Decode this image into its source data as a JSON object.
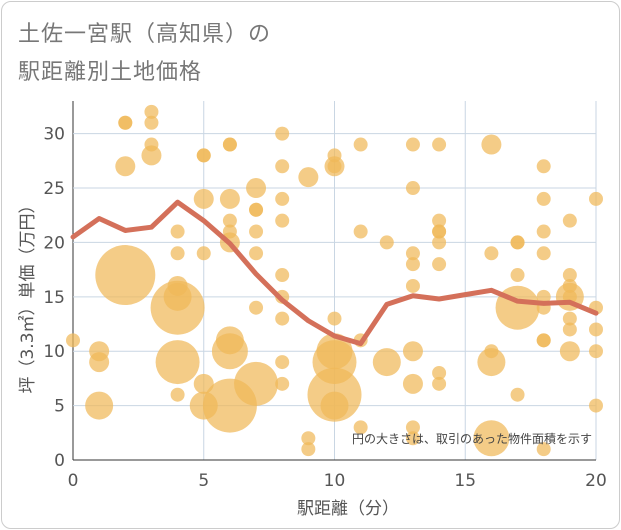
{
  "title_line1": "土佐一宮駅（高知県）の",
  "title_line2": "駅距離別土地価格",
  "chart_data": {
    "type": "scatter",
    "xlabel": "駅距離（分）",
    "ylabel": "坪（3.3㎡）単価（万円）",
    "xlim": [
      0,
      20
    ],
    "ylim": [
      0,
      33
    ],
    "xticks": [
      0,
      5,
      10,
      15,
      20
    ],
    "yticks": [
      0,
      5,
      10,
      15,
      20,
      25,
      30
    ],
    "grid": true,
    "note": "円の大きさは、取引のあった物件面積を示す",
    "colors": {
      "bubble": "#f0b859",
      "line": "#d4705a"
    },
    "bubbles": [
      {
        "x": 0,
        "y": 11,
        "s": 1
      },
      {
        "x": 1,
        "y": 10,
        "s": 2
      },
      {
        "x": 1,
        "y": 9,
        "s": 2
      },
      {
        "x": 1,
        "y": 5,
        "s": 3
      },
      {
        "x": 2,
        "y": 31,
        "s": 1
      },
      {
        "x": 2,
        "y": 31,
        "s": 1
      },
      {
        "x": 2,
        "y": 27,
        "s": 2
      },
      {
        "x": 2,
        "y": 17,
        "s": 7
      },
      {
        "x": 3,
        "y": 32,
        "s": 1
      },
      {
        "x": 3,
        "y": 31,
        "s": 1
      },
      {
        "x": 3,
        "y": 29,
        "s": 1
      },
      {
        "x": 3,
        "y": 28,
        "s": 2
      },
      {
        "x": 4,
        "y": 21,
        "s": 1
      },
      {
        "x": 4,
        "y": 19,
        "s": 1
      },
      {
        "x": 4,
        "y": 16,
        "s": 2
      },
      {
        "x": 4,
        "y": 15,
        "s": 3
      },
      {
        "x": 4,
        "y": 14,
        "s": 6
      },
      {
        "x": 4,
        "y": 9,
        "s": 5
      },
      {
        "x": 4,
        "y": 6,
        "s": 1
      },
      {
        "x": 5,
        "y": 28,
        "s": 1
      },
      {
        "x": 5,
        "y": 28,
        "s": 1
      },
      {
        "x": 5,
        "y": 24,
        "s": 2
      },
      {
        "x": 5,
        "y": 19,
        "s": 1
      },
      {
        "x": 5,
        "y": 7,
        "s": 2
      },
      {
        "x": 5,
        "y": 5,
        "s": 3
      },
      {
        "x": 6,
        "y": 29,
        "s": 1
      },
      {
        "x": 6,
        "y": 29,
        "s": 1
      },
      {
        "x": 6,
        "y": 24,
        "s": 2
      },
      {
        "x": 6,
        "y": 22,
        "s": 1
      },
      {
        "x": 6,
        "y": 21,
        "s": 1
      },
      {
        "x": 6,
        "y": 20,
        "s": 2
      },
      {
        "x": 6,
        "y": 11,
        "s": 3
      },
      {
        "x": 6,
        "y": 10,
        "s": 4
      },
      {
        "x": 6,
        "y": 5,
        "s": 6
      },
      {
        "x": 7,
        "y": 25,
        "s": 2
      },
      {
        "x": 7,
        "y": 23,
        "s": 1
      },
      {
        "x": 7,
        "y": 23,
        "s": 1
      },
      {
        "x": 7,
        "y": 21,
        "s": 1
      },
      {
        "x": 7,
        "y": 19,
        "s": 1
      },
      {
        "x": 7,
        "y": 14,
        "s": 1
      },
      {
        "x": 7,
        "y": 7,
        "s": 5
      },
      {
        "x": 8,
        "y": 30,
        "s": 1
      },
      {
        "x": 8,
        "y": 27,
        "s": 1
      },
      {
        "x": 8,
        "y": 24,
        "s": 1
      },
      {
        "x": 8,
        "y": 22,
        "s": 1
      },
      {
        "x": 8,
        "y": 17,
        "s": 1
      },
      {
        "x": 8,
        "y": 15,
        "s": 1
      },
      {
        "x": 8,
        "y": 13,
        "s": 1
      },
      {
        "x": 8,
        "y": 9,
        "s": 1
      },
      {
        "x": 8,
        "y": 7,
        "s": 1
      },
      {
        "x": 9,
        "y": 26,
        "s": 2
      },
      {
        "x": 9,
        "y": 2,
        "s": 1
      },
      {
        "x": 9,
        "y": 1,
        "s": 1
      },
      {
        "x": 10,
        "y": 28,
        "s": 1
      },
      {
        "x": 10,
        "y": 27,
        "s": 2
      },
      {
        "x": 10,
        "y": 27,
        "s": 1
      },
      {
        "x": 10,
        "y": 13,
        "s": 1
      },
      {
        "x": 10,
        "y": 10,
        "s": 4
      },
      {
        "x": 10,
        "y": 9,
        "s": 5
      },
      {
        "x": 10,
        "y": 6,
        "s": 6
      },
      {
        "x": 10,
        "y": 5,
        "s": 3
      },
      {
        "x": 11,
        "y": 29,
        "s": 1
      },
      {
        "x": 11,
        "y": 21,
        "s": 1
      },
      {
        "x": 11,
        "y": 11,
        "s": 1
      },
      {
        "x": 11,
        "y": 3,
        "s": 1
      },
      {
        "x": 12,
        "y": 20,
        "s": 1
      },
      {
        "x": 12,
        "y": 9,
        "s": 3
      },
      {
        "x": 13,
        "y": 29,
        "s": 1
      },
      {
        "x": 13,
        "y": 25,
        "s": 1
      },
      {
        "x": 13,
        "y": 19,
        "s": 1
      },
      {
        "x": 13,
        "y": 18,
        "s": 1
      },
      {
        "x": 13,
        "y": 16,
        "s": 1
      },
      {
        "x": 13,
        "y": 10,
        "s": 2
      },
      {
        "x": 13,
        "y": 7,
        "s": 2
      },
      {
        "x": 13,
        "y": 3,
        "s": 1
      },
      {
        "x": 13,
        "y": 2,
        "s": 1
      },
      {
        "x": 14,
        "y": 29,
        "s": 1
      },
      {
        "x": 14,
        "y": 22,
        "s": 1
      },
      {
        "x": 14,
        "y": 21,
        "s": 1
      },
      {
        "x": 14,
        "y": 21,
        "s": 1
      },
      {
        "x": 14,
        "y": 20,
        "s": 1
      },
      {
        "x": 14,
        "y": 18,
        "s": 1
      },
      {
        "x": 14,
        "y": 8,
        "s": 1
      },
      {
        "x": 14,
        "y": 7,
        "s": 1
      },
      {
        "x": 16,
        "y": 29,
        "s": 2
      },
      {
        "x": 16,
        "y": 19,
        "s": 1
      },
      {
        "x": 16,
        "y": 10,
        "s": 1
      },
      {
        "x": 16,
        "y": 9,
        "s": 3
      },
      {
        "x": 16,
        "y": 2,
        "s": 4
      },
      {
        "x": 17,
        "y": 20,
        "s": 1
      },
      {
        "x": 17,
        "y": 20,
        "s": 1
      },
      {
        "x": 17,
        "y": 17,
        "s": 1
      },
      {
        "x": 17,
        "y": 14,
        "s": 5
      },
      {
        "x": 17,
        "y": 6,
        "s": 1
      },
      {
        "x": 18,
        "y": 27,
        "s": 1
      },
      {
        "x": 18,
        "y": 24,
        "s": 1
      },
      {
        "x": 18,
        "y": 21,
        "s": 1
      },
      {
        "x": 18,
        "y": 19,
        "s": 1
      },
      {
        "x": 18,
        "y": 15,
        "s": 1
      },
      {
        "x": 18,
        "y": 14,
        "s": 1
      },
      {
        "x": 18,
        "y": 11,
        "s": 1
      },
      {
        "x": 18,
        "y": 11,
        "s": 1
      },
      {
        "x": 18,
        "y": 1,
        "s": 1
      },
      {
        "x": 19,
        "y": 22,
        "s": 1
      },
      {
        "x": 19,
        "y": 17,
        "s": 1
      },
      {
        "x": 19,
        "y": 16,
        "s": 1
      },
      {
        "x": 19,
        "y": 15,
        "s": 3
      },
      {
        "x": 19,
        "y": 15,
        "s": 1
      },
      {
        "x": 19,
        "y": 13,
        "s": 1
      },
      {
        "x": 19,
        "y": 12,
        "s": 1
      },
      {
        "x": 19,
        "y": 10,
        "s": 2
      },
      {
        "x": 20,
        "y": 24,
        "s": 1
      },
      {
        "x": 20,
        "y": 14,
        "s": 1
      },
      {
        "x": 20,
        "y": 12,
        "s": 1
      },
      {
        "x": 20,
        "y": 10,
        "s": 1
      },
      {
        "x": 20,
        "y": 5,
        "s": 1
      }
    ],
    "trend": {
      "x": [
        0,
        1,
        2,
        3,
        4,
        5,
        6,
        7,
        8,
        9,
        10,
        11,
        12,
        13,
        14,
        15,
        16,
        17,
        18,
        19,
        20
      ],
      "y": [
        20.5,
        22.2,
        21.1,
        21.4,
        23.7,
        22.0,
        19.9,
        17.1,
        14.7,
        12.8,
        11.4,
        10.7,
        14.3,
        15.1,
        14.8,
        15.2,
        15.6,
        14.6,
        14.4,
        14.5,
        13.5
      ]
    }
  }
}
